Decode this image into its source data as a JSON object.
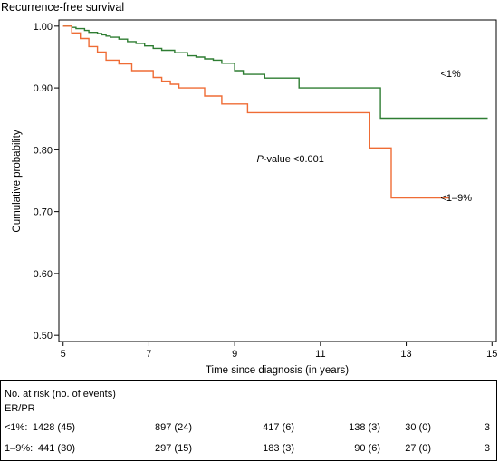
{
  "chart_data": {
    "type": "line",
    "title": "Recurrence-free survival",
    "xlabel": "Time since diagnosis (in years)",
    "ylabel": "Cumulative probability",
    "xlim": [
      4.9,
      15.1
    ],
    "ylim": [
      0.49,
      1.01
    ],
    "xticks": [
      5,
      7,
      9,
      11,
      13,
      15
    ],
    "xtick_labels": [
      "5",
      "7",
      "9",
      "11",
      "13",
      "15"
    ],
    "yticks": [
      0.5,
      0.6,
      0.7,
      0.8,
      0.9,
      1.0
    ],
    "ytick_labels": [
      "0.50",
      "0.60",
      "0.70",
      "0.80",
      "0.90",
      "1.00"
    ],
    "grid": false,
    "annotation": {
      "italic": "P",
      "text": "-value <0.001",
      "x": 10.3,
      "y": 0.78
    },
    "series": [
      {
        "name": "<1%",
        "label_x": 13.8,
        "label_y": 0.918,
        "color": "#2e7d32",
        "x": [
          5.0,
          5.2,
          5.3,
          5.5,
          5.6,
          5.8,
          5.9,
          6.0,
          6.1,
          6.3,
          6.5,
          6.7,
          6.9,
          7.1,
          7.3,
          7.6,
          7.9,
          8.1,
          8.3,
          8.5,
          8.7,
          9.0,
          9.2,
          9.7,
          10.5,
          11.5,
          12.4,
          12.6,
          14.9
        ],
        "y": [
          1.0,
          0.998,
          0.996,
          0.993,
          0.99,
          0.988,
          0.986,
          0.984,
          0.982,
          0.979,
          0.975,
          0.972,
          0.968,
          0.964,
          0.961,
          0.957,
          0.952,
          0.95,
          0.947,
          0.945,
          0.94,
          0.928,
          0.922,
          0.916,
          0.9,
          0.9,
          0.851,
          0.851,
          0.851
        ]
      },
      {
        "name": "<1–9%",
        "label_x": 13.8,
        "label_y": 0.717,
        "color": "#ef6c35",
        "x": [
          5.0,
          5.2,
          5.4,
          5.6,
          5.8,
          6.0,
          6.3,
          6.6,
          7.1,
          7.3,
          7.5,
          7.7,
          8.3,
          8.7,
          9.3,
          10.0,
          11.0,
          12.15,
          12.65,
          14.0
        ],
        "y": [
          1.0,
          0.989,
          0.98,
          0.967,
          0.958,
          0.945,
          0.939,
          0.928,
          0.917,
          0.911,
          0.906,
          0.9,
          0.887,
          0.874,
          0.86,
          0.86,
          0.86,
          0.803,
          0.722,
          0.722
        ]
      }
    ]
  },
  "risk_table": {
    "header": "No. at risk (no. of events)",
    "group_label": "ER/PR",
    "rows": [
      {
        "label": "<1%:",
        "values": [
          "1428 (45)",
          "897 (24)",
          "417 (6)",
          "138 (3)",
          "30 (0)",
          "3"
        ]
      },
      {
        "label": "1–9%:",
        "values": [
          "441 (30)",
          "297 (15)",
          "183 (3)",
          "90 (6)",
          "27 (0)",
          "3"
        ]
      }
    ]
  }
}
